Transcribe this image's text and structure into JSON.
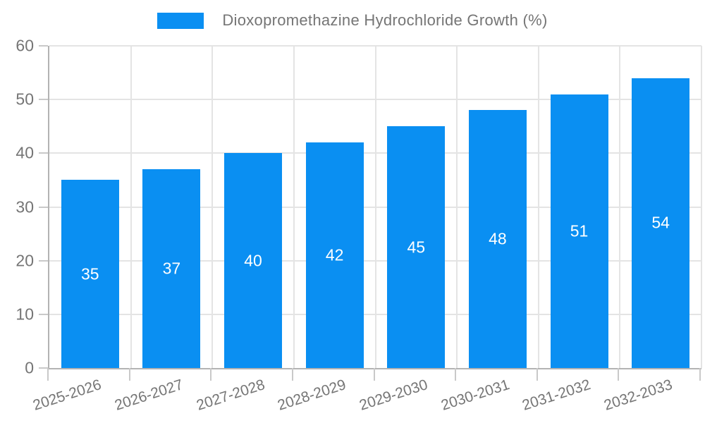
{
  "legend": {
    "label": "Dioxopromethazine Hydrochloride Growth (%)"
  },
  "colors": {
    "bar": "#0a8ff2",
    "grid": "#e4e4e4",
    "axis": "#b3b3b3",
    "tick": "#c9c9c9",
    "text": "#757575",
    "value_label": "#ffffff",
    "background": "#ffffff"
  },
  "chart_data": {
    "type": "bar",
    "title": "",
    "series_name": "Dioxopromethazine Hydrochloride Growth (%)",
    "categories": [
      "2025-2026",
      "2026-2027",
      "2027-2028",
      "2028-2029",
      "2029-2030",
      "2030-2031",
      "2031-2032",
      "2032-2033"
    ],
    "values": [
      35,
      37,
      40,
      42,
      45,
      48,
      51,
      54
    ],
    "value_label_position": "inside-center",
    "xlabel": "",
    "ylabel": "",
    "ylim": [
      0,
      60
    ],
    "yticks": [
      0,
      10,
      20,
      30,
      40,
      50,
      60
    ],
    "grid": true,
    "legend_position": "top-center"
  }
}
